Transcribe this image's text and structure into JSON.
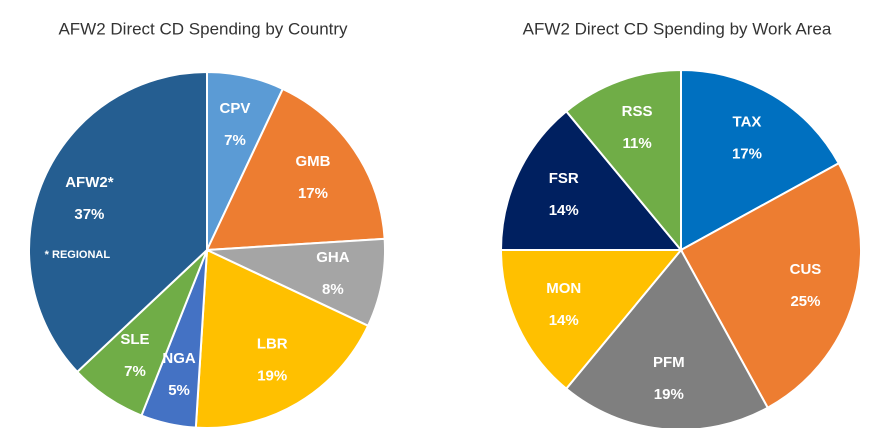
{
  "chart_data": [
    {
      "type": "pie",
      "title": "AFW2 Direct CD Spending by Country",
      "categories": [
        "CPV",
        "GMB",
        "GHA",
        "LBR",
        "NGA",
        "SLE",
        "AFW2*"
      ],
      "values": [
        7,
        17,
        8,
        19,
        5,
        7,
        37
      ],
      "value_labels": [
        "7%",
        "17%",
        "8%",
        "19%",
        "5%",
        "7%",
        "37%"
      ],
      "colors": [
        "#5b9bd5",
        "#ed7d31",
        "#a5a5a5",
        "#ffc000",
        "#4472c4",
        "#70ad47",
        "#255e91"
      ],
      "annotation": "* REGIONAL"
    },
    {
      "type": "pie",
      "title": "AFW2 Direct CD Spending by Work Area",
      "categories": [
        "TAX",
        "CUS",
        "PFM",
        "MON",
        "FSR",
        "RSS"
      ],
      "values": [
        17,
        25,
        19,
        14,
        14,
        11
      ],
      "value_labels": [
        "17%",
        "25%",
        "19%",
        "14%",
        "14%",
        "11%"
      ],
      "colors": [
        "#0070c0",
        "#ed7d31",
        "#7f7f7f",
        "#ffc000",
        "#002060",
        "#70ad47"
      ]
    }
  ]
}
